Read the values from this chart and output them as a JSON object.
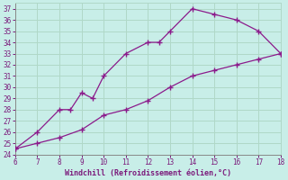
{
  "xlabel": "Windchill (Refroidissement éolien,°C)",
  "xlim": [
    6,
    18
  ],
  "ylim": [
    24,
    37.5
  ],
  "xticks": [
    6,
    7,
    8,
    9,
    10,
    11,
    12,
    13,
    14,
    15,
    16,
    17,
    18
  ],
  "yticks": [
    24,
    25,
    26,
    27,
    28,
    29,
    30,
    31,
    32,
    33,
    34,
    35,
    36,
    37
  ],
  "line1_x": [
    6,
    7,
    8,
    8.5,
    9,
    9.5,
    10,
    11,
    12,
    12.5,
    13,
    14,
    15,
    16,
    17,
    18
  ],
  "line1_y": [
    24.5,
    26,
    28,
    28,
    29.5,
    29,
    31,
    33,
    34,
    34,
    35,
    37,
    36.5,
    36,
    35,
    33
  ],
  "line2_x": [
    6,
    7,
    8,
    9,
    10,
    11,
    12,
    13,
    14,
    15,
    16,
    17,
    18
  ],
  "line2_y": [
    24.5,
    25,
    25.5,
    26.2,
    27.5,
    28,
    28.8,
    30,
    31,
    31.5,
    32,
    32.5,
    33
  ],
  "line_color": "#8b1a8b",
  "bg_color": "#c8eee8",
  "grid_color": "#b0d8c8",
  "tick_color": "#7b1a7b",
  "label_color": "#7b1a7b"
}
